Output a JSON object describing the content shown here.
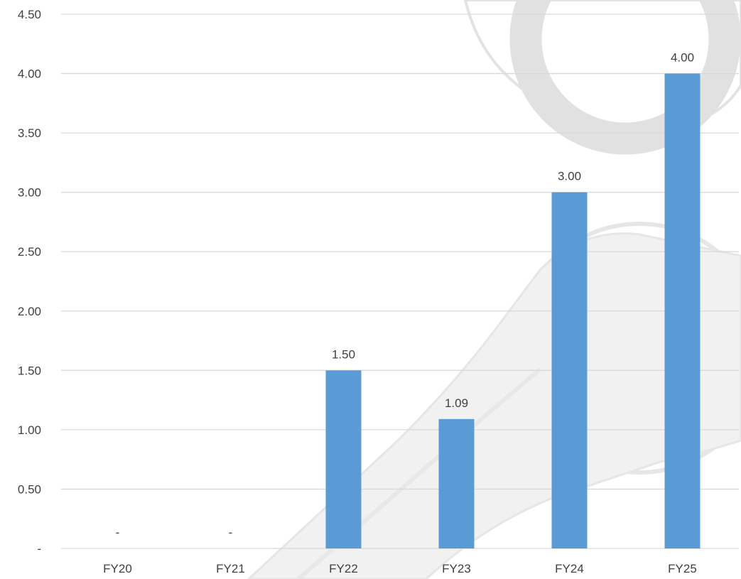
{
  "chart_data": {
    "type": "bar",
    "categories": [
      "FY20",
      "FY21",
      "FY22",
      "FY23",
      "FY24",
      "FY25"
    ],
    "values": [
      0,
      0,
      1.5,
      1.09,
      3.0,
      4.0
    ],
    "data_labels": [
      "-",
      "-",
      "1.50",
      "1.09",
      "3.00",
      "4.00"
    ],
    "ylim": [
      0,
      4.5
    ],
    "y_ticks": [
      0,
      0.5,
      1.0,
      1.5,
      2.0,
      2.5,
      3.0,
      3.5,
      4.0,
      4.5
    ],
    "y_tick_labels": [
      "-",
      "0.50",
      "1.00",
      "1.50",
      "2.00",
      "2.50",
      "3.00",
      "3.50",
      "4.00",
      "4.50"
    ],
    "title": "",
    "xlabel": "",
    "ylabel": "",
    "grid": true,
    "legend": "none",
    "colors": {
      "bar": "#5b9bd5",
      "grid": "#d9d9d9",
      "text": "#404040",
      "watermark": "#bdbdbd"
    },
    "watermark_icon": "wrench-icon"
  }
}
